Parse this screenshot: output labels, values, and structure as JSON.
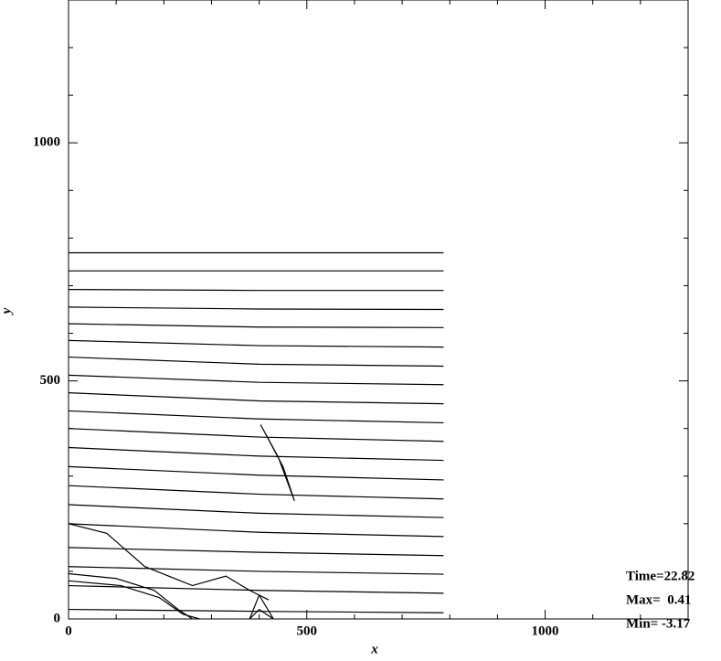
{
  "chart_data": {
    "type": "contour",
    "xlabel": "x",
    "ylabel": "y",
    "xlim": [
      0,
      1300
    ],
    "ylim": [
      0,
      1300
    ],
    "xticks": [
      0,
      500,
      1000
    ],
    "yticks": [
      0,
      500,
      1000
    ],
    "xminorticks": [
      100,
      200,
      300,
      400,
      600,
      700,
      800,
      900,
      1100,
      1200
    ],
    "yminorticks": [
      100,
      200,
      300,
      400,
      600,
      700,
      800,
      900,
      1100,
      1200
    ],
    "color": "#000000",
    "annotations": [
      "Time=22.82",
      "Max=  0.41",
      "Min= -3.17"
    ],
    "series": [
      {
        "x": [
          0,
          400,
          787
        ],
        "y": [
          769,
          769,
          769
        ]
      },
      {
        "x": [
          0,
          400,
          787
        ],
        "y": [
          731,
          731,
          731
        ]
      },
      {
        "x": [
          0,
          400,
          787
        ],
        "y": [
          692,
          690,
          690
        ]
      },
      {
        "x": [
          0,
          400,
          787
        ],
        "y": [
          655,
          651,
          650
        ]
      },
      {
        "x": [
          0,
          400,
          787
        ],
        "y": [
          620,
          613,
          612
        ]
      },
      {
        "x": [
          0,
          400,
          787
        ],
        "y": [
          585,
          574,
          571
        ]
      },
      {
        "x": [
          0,
          400,
          787
        ],
        "y": [
          550,
          535,
          531
        ]
      },
      {
        "x": [
          0,
          400,
          787
        ],
        "y": [
          512,
          497,
          492
        ]
      },
      {
        "x": [
          0,
          400,
          787
        ],
        "y": [
          475,
          458,
          452
        ]
      },
      {
        "x": [
          0,
          400,
          787
        ],
        "y": [
          437,
          420,
          412
        ]
      },
      {
        "x": [
          0,
          400,
          787
        ],
        "y": [
          400,
          382,
          373
        ]
      },
      {
        "x": [
          0,
          400,
          787
        ],
        "y": [
          360,
          342,
          333
        ]
      },
      {
        "x": [
          0,
          400,
          787
        ],
        "y": [
          320,
          302,
          292
        ]
      },
      {
        "x": [
          0,
          400,
          787
        ],
        "y": [
          280,
          262,
          252
        ]
      },
      {
        "x": [
          0,
          400,
          787
        ],
        "y": [
          240,
          222,
          213
        ]
      },
      {
        "x": [
          0,
          400,
          787
        ],
        "y": [
          200,
          182,
          173
        ]
      },
      {
        "x": [
          0,
          400,
          787
        ],
        "y": [
          150,
          140,
          133
        ]
      },
      {
        "x": [
          0,
          400,
          787
        ],
        "y": [
          110,
          100,
          94
        ]
      },
      {
        "x": [
          0,
          400,
          787
        ],
        "y": [
          70,
          60,
          54
        ]
      },
      {
        "x": [
          0,
          400,
          787
        ],
        "y": [
          20,
          16,
          13
        ]
      },
      {
        "x": [
          403,
          440,
          474,
          450,
          403
        ],
        "y": [
          408,
          340,
          248,
          320,
          408
        ]
      },
      {
        "x": [
          0,
          100,
          180,
          230,
          260
        ],
        "y": [
          95,
          85,
          60,
          20,
          0
        ]
      },
      {
        "x": [
          0,
          110,
          190,
          240,
          275
        ],
        "y": [
          80,
          70,
          45,
          10,
          0
        ]
      },
      {
        "x": [
          0,
          80,
          160,
          260,
          330,
          380,
          420
        ],
        "y": [
          200,
          180,
          110,
          70,
          90,
          60,
          40
        ]
      },
      {
        "x": [
          380,
          400,
          430,
          400,
          380
        ],
        "y": [
          0,
          50,
          0,
          20,
          0
        ]
      }
    ]
  }
}
